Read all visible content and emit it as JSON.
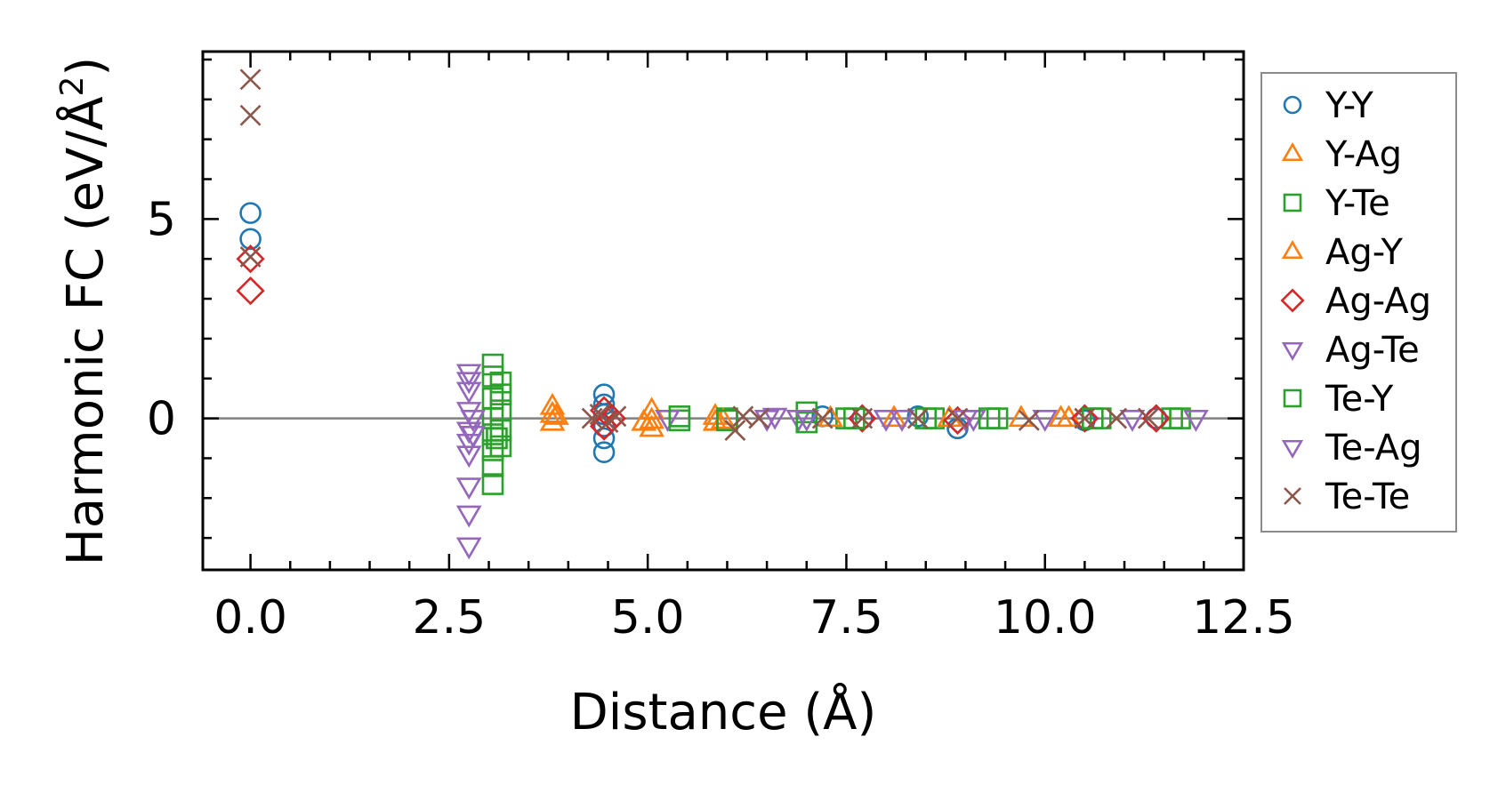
{
  "chart_data": {
    "type": "scatter",
    "title": "",
    "xlabel": "Distance (Å)",
    "ylabel_main": "Harmonic FC (eV/Å",
    "ylabel_sup": "2",
    "ylabel_close": ")",
    "xlim": [
      -0.6,
      12.5
    ],
    "ylim": [
      -3.8,
      9.2
    ],
    "xticks": [
      0.0,
      2.5,
      5.0,
      7.5,
      10.0,
      12.5
    ],
    "xtick_labels": [
      "0.0",
      "2.5",
      "5.0",
      "7.5",
      "10.0",
      "12.5"
    ],
    "yticks": [
      0,
      5
    ],
    "ytick_labels": [
      "0",
      "5"
    ],
    "zero_line": 0,
    "legend_position": "outside-right",
    "series": [
      {
        "name": "Y-Y",
        "marker": "circle",
        "color": "#1f77b4",
        "points": [
          [
            0.0,
            5.15
          ],
          [
            0.0,
            4.5
          ],
          [
            4.45,
            0.6
          ],
          [
            4.45,
            0.35
          ],
          [
            4.45,
            0.1
          ],
          [
            4.45,
            -0.2
          ],
          [
            4.45,
            -0.5
          ],
          [
            4.45,
            -0.85
          ],
          [
            7.2,
            0.05
          ],
          [
            7.7,
            0.0
          ],
          [
            8.4,
            0.05
          ],
          [
            8.9,
            -0.25
          ],
          [
            10.5,
            -0.05
          ],
          [
            11.4,
            0.0
          ]
        ]
      },
      {
        "name": "Y-Ag",
        "marker": "triangle-up",
        "color": "#ff7f0e",
        "points": [
          [
            3.8,
            0.3
          ],
          [
            3.8,
            0.1
          ],
          [
            3.8,
            -0.1
          ],
          [
            5.05,
            0.2
          ],
          [
            5.05,
            -0.05
          ],
          [
            5.05,
            -0.25
          ],
          [
            5.85,
            0.05
          ],
          [
            5.85,
            -0.1
          ],
          [
            8.1,
            0.0
          ],
          [
            9.7,
            0.0
          ],
          [
            10.3,
            0.0
          ]
        ]
      },
      {
        "name": "Y-Te",
        "marker": "square",
        "color": "#2ca02c",
        "points": [
          [
            3.05,
            1.35
          ],
          [
            3.05,
            1.05
          ],
          [
            3.05,
            0.5
          ],
          [
            3.05,
            -0.4
          ],
          [
            3.05,
            -0.8
          ],
          [
            3.05,
            -1.2
          ],
          [
            3.05,
            -1.65
          ],
          [
            3.15,
            0.9
          ],
          [
            3.15,
            0.6
          ],
          [
            3.15,
            0.2
          ],
          [
            3.15,
            -0.3
          ],
          [
            3.15,
            -0.7
          ],
          [
            5.4,
            -0.05
          ],
          [
            6.0,
            0.0
          ],
          [
            7.0,
            0.15
          ],
          [
            7.5,
            0.0
          ],
          [
            8.6,
            0.0
          ],
          [
            9.4,
            0.0
          ],
          [
            10.7,
            0.0
          ],
          [
            11.6,
            0.0
          ]
        ]
      },
      {
        "name": "Ag-Y",
        "marker": "triangle-up",
        "color": "#ff7f0e",
        "points": [
          [
            3.85,
            0.05
          ],
          [
            4.95,
            -0.1
          ],
          [
            5.95,
            -0.05
          ],
          [
            7.3,
            0.0
          ],
          [
            8.8,
            0.0
          ],
          [
            10.2,
            0.0
          ]
        ]
      },
      {
        "name": "Ag-Ag",
        "marker": "diamond",
        "color": "#d62728",
        "points": [
          [
            0.0,
            3.2
          ],
          [
            0.0,
            4.0
          ],
          [
            4.45,
            0.2
          ],
          [
            4.45,
            -0.2
          ],
          [
            4.55,
            0.0
          ],
          [
            7.7,
            0.0
          ],
          [
            8.9,
            -0.05
          ],
          [
            10.5,
            0.0
          ],
          [
            11.4,
            0.0
          ]
        ]
      },
      {
        "name": "Ag-Te",
        "marker": "triangle-down",
        "color": "#9467bd",
        "points": [
          [
            2.75,
            1.15
          ],
          [
            2.75,
            0.95
          ],
          [
            2.75,
            0.7
          ],
          [
            2.75,
            0.2
          ],
          [
            2.75,
            -0.3
          ],
          [
            2.75,
            -0.6
          ],
          [
            2.75,
            -0.9
          ],
          [
            2.75,
            -1.7
          ],
          [
            2.75,
            -2.4
          ],
          [
            2.75,
            -3.2
          ],
          [
            5.25,
            0.0
          ],
          [
            6.5,
            0.0
          ],
          [
            6.9,
            0.0
          ],
          [
            8.2,
            0.0
          ],
          [
            9.1,
            0.0
          ],
          [
            10.0,
            0.0
          ]
        ]
      },
      {
        "name": "Te-Y",
        "marker": "square",
        "color": "#2ca02c",
        "points": [
          [
            3.05,
            0.0
          ],
          [
            3.1,
            -0.5
          ],
          [
            5.4,
            0.05
          ],
          [
            6.0,
            -0.05
          ],
          [
            7.0,
            -0.1
          ],
          [
            7.6,
            0.0
          ],
          [
            8.5,
            0.0
          ],
          [
            9.3,
            0.0
          ],
          [
            10.6,
            0.0
          ],
          [
            11.7,
            0.0
          ]
        ]
      },
      {
        "name": "Te-Ag",
        "marker": "triangle-down",
        "color": "#9467bd",
        "points": [
          [
            2.8,
            0.0
          ],
          [
            2.8,
            -0.4
          ],
          [
            6.6,
            0.05
          ],
          [
            7.0,
            0.0
          ],
          [
            8.0,
            0.0
          ],
          [
            9.0,
            0.0
          ],
          [
            11.1,
            0.0
          ],
          [
            11.9,
            0.0
          ]
        ]
      },
      {
        "name": "Te-Te",
        "marker": "x",
        "color": "#8c564b",
        "points": [
          [
            0.0,
            8.5
          ],
          [
            0.0,
            7.6
          ],
          [
            0.0,
            4.05
          ],
          [
            4.3,
            0.0
          ],
          [
            4.4,
            0.1
          ],
          [
            4.5,
            -0.1
          ],
          [
            4.6,
            0.05
          ],
          [
            6.1,
            -0.3
          ],
          [
            6.2,
            0.05
          ],
          [
            6.4,
            0.0
          ],
          [
            7.2,
            0.0
          ],
          [
            7.7,
            0.0
          ],
          [
            8.4,
            0.0
          ],
          [
            8.9,
            0.0
          ],
          [
            9.8,
            -0.05
          ],
          [
            10.5,
            0.0
          ],
          [
            10.9,
            0.0
          ],
          [
            11.3,
            0.0
          ]
        ]
      }
    ]
  }
}
